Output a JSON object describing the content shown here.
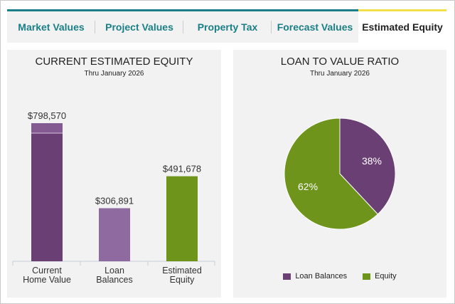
{
  "tabs": [
    {
      "label": "Market Values"
    },
    {
      "label": "Project Values"
    },
    {
      "label": "Property Tax"
    },
    {
      "label": "Forecast Values"
    },
    {
      "label": "Estimated Equity",
      "active": true
    }
  ],
  "colors": {
    "teal": "#1a7f86",
    "yellow": "#f2e04a",
    "home": "#693f74",
    "loan": "#8f6aa0",
    "equity": "#6e941b"
  },
  "left": {
    "title": "CURRENT ESTIMATED EQUITY",
    "subtitle": "Thru January 2026"
  },
  "right": {
    "title": "LOAN TO VALUE RATIO",
    "subtitle": "Thru January 2026"
  },
  "chart_data": [
    {
      "type": "bar",
      "title": "CURRENT ESTIMATED EQUITY",
      "subtitle": "Thru January 2026",
      "categories": [
        [
          "Current",
          "Home Value"
        ],
        [
          "Loan",
          "Balances"
        ],
        [
          "Estimated",
          "Equity"
        ]
      ],
      "values": [
        798570,
        306891,
        491678
      ],
      "labels": [
        "$798,570",
        "$306,891",
        "$491,678"
      ],
      "colors": [
        "#693f74",
        "#8f6aa0",
        "#6e941b"
      ]
    },
    {
      "type": "pie",
      "title": "LOAN TO VALUE RATIO",
      "subtitle": "Thru January 2026",
      "slices": [
        {
          "name": "Loan Balances",
          "value": 38,
          "label": "38%",
          "color": "#693f74"
        },
        {
          "name": "Equity",
          "value": 62,
          "label": "62%",
          "color": "#6e941b"
        }
      ],
      "legend": "bottom"
    }
  ]
}
